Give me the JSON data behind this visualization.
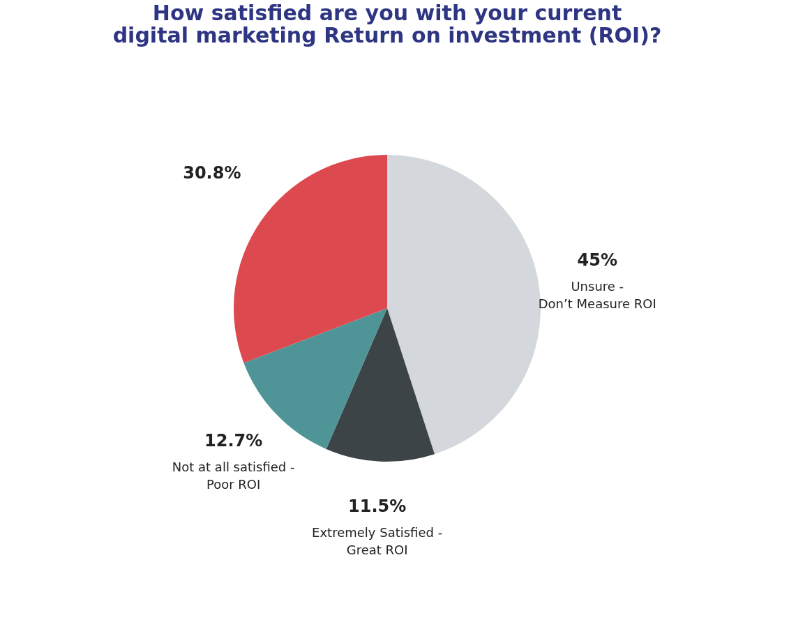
{
  "chart_data": {
    "type": "pie",
    "title": "How satisfied are you with your current digital marketing Return on  investment  (ROI)?",
    "categories": [
      "Unsure -\nDon’t Measure ROI",
      "Extremely Satisfied -\nGreat ROI",
      "Not at all satisfied -\nPoor ROI",
      null
    ],
    "values": [
      45,
      11.5,
      12.7,
      30.8
    ],
    "value_labels": [
      "45%",
      "11.5%",
      "12.7%",
      "30.8%"
    ],
    "colors": [
      "#d4d7db",
      "#3c4447",
      "#4f9598",
      "#dc4a4f"
    ],
    "legend": false
  }
}
